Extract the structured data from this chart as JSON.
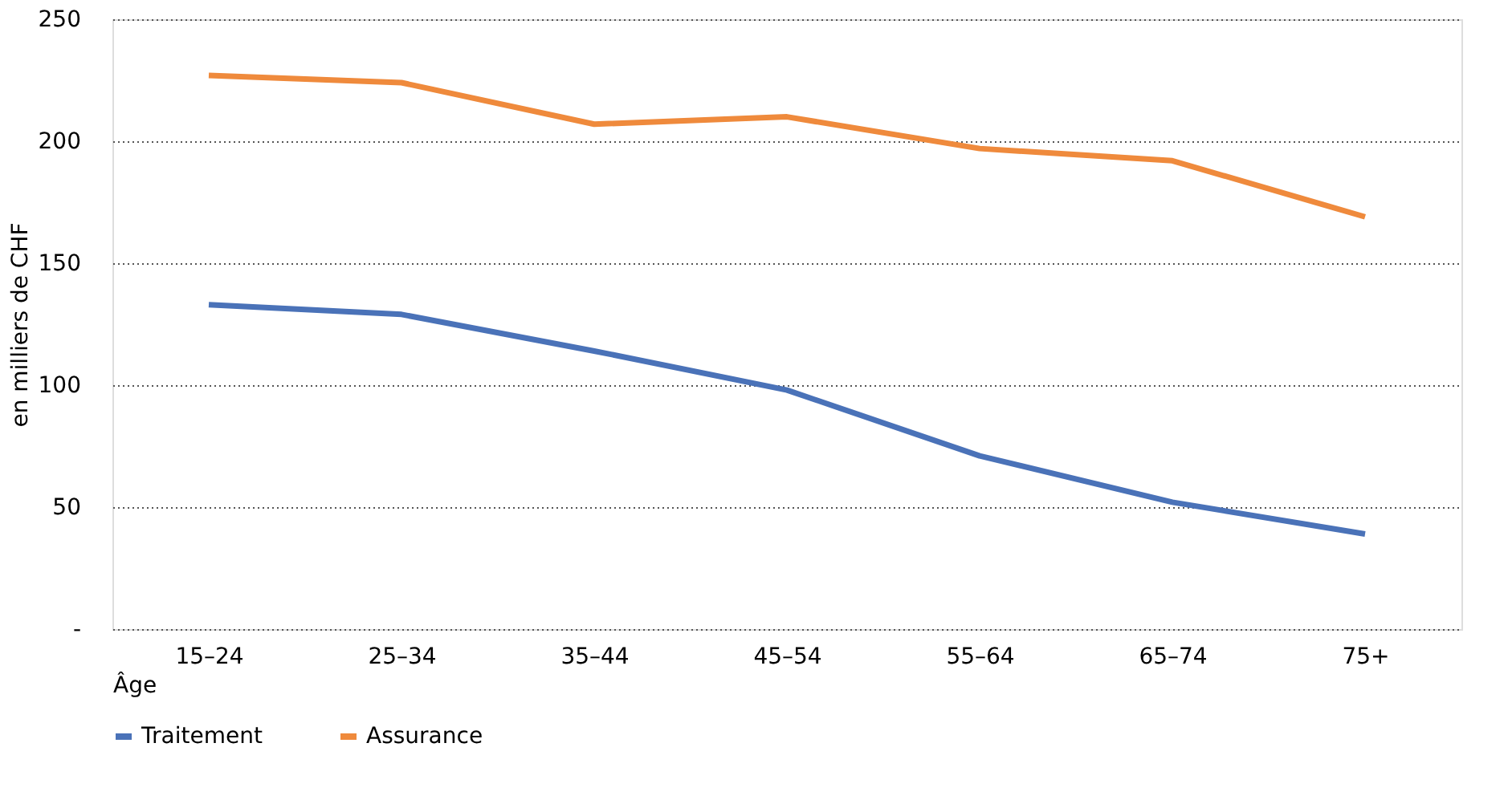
{
  "chart_data": {
    "type": "line",
    "xlabel": "Âge",
    "ylabel": "en milliers de CHF",
    "categories": [
      "15–24",
      "25–34",
      "35–44",
      "45–54",
      "55–64",
      "65–74",
      "75+"
    ],
    "series": [
      {
        "name": "Traitement",
        "color": "#4a72b8",
        "values": [
          133,
          129,
          114,
          98,
          71,
          52,
          39
        ]
      },
      {
        "name": "Assurance",
        "color": "#ef8a3c",
        "values": [
          227,
          224,
          207,
          210,
          197,
          192,
          169
        ]
      }
    ],
    "ylim": [
      0,
      250
    ],
    "yticks": [
      {
        "value": 0,
        "label": "-"
      },
      50,
      100,
      150,
      200,
      250
    ],
    "grid": "y",
    "legend": "bottom",
    "marker": "none",
    "line_style": "solid"
  }
}
